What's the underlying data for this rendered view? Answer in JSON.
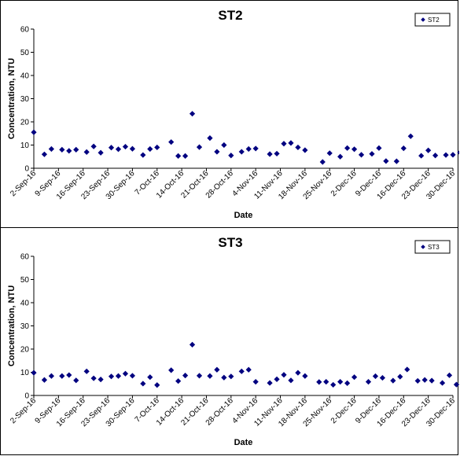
{
  "chart_data": [
    {
      "type": "scatter",
      "title": "ST2",
      "xlabel": "Date",
      "ylabel": "Concentration, NTU",
      "ylim": [
        0,
        60
      ],
      "yticks": [
        0,
        10,
        20,
        30,
        40,
        50,
        60
      ],
      "xlim": [
        "2-Sep-16",
        "30-Dec-16"
      ],
      "xtick_labels": [
        "2-Sep-16",
        "9-Sep-16",
        "16-Sep-16",
        "23-Sep-16",
        "30-Sep-16",
        "7-Oct-16",
        "14-Oct-16",
        "21-Oct-16",
        "28-Oct-16",
        "4-Nov-16",
        "11-Nov-16",
        "18-Nov-16",
        "25-Nov-16",
        "2-Dec-16",
        "9-Dec-16",
        "16-Dec-16",
        "23-Dec-16",
        "30-Dec-16"
      ],
      "legend_position": "top-right",
      "marker": "diamond",
      "color": "#000080",
      "series": [
        {
          "name": "ST2",
          "points": [
            {
              "x": "2-Sep-16",
              "y": 15.5
            },
            {
              "x": "5-Sep-16",
              "y": 6
            },
            {
              "x": "7-Sep-16",
              "y": 8.3
            },
            {
              "x": "10-Sep-16",
              "y": 8
            },
            {
              "x": "12-Sep-16",
              "y": 7.5
            },
            {
              "x": "14-Sep-16",
              "y": 8
            },
            {
              "x": "17-Sep-16",
              "y": 7
            },
            {
              "x": "19-Sep-16",
              "y": 9.4
            },
            {
              "x": "21-Sep-16",
              "y": 6.7
            },
            {
              "x": "24-Sep-16",
              "y": 8.9
            },
            {
              "x": "26-Sep-16",
              "y": 8.2
            },
            {
              "x": "28-Sep-16",
              "y": 9.3
            },
            {
              "x": "30-Sep-16",
              "y": 8.4
            },
            {
              "x": "3-Oct-16",
              "y": 5.7
            },
            {
              "x": "5-Oct-16",
              "y": 8.3
            },
            {
              "x": "7-Oct-16",
              "y": 9
            },
            {
              "x": "11-Oct-16",
              "y": 11.3
            },
            {
              "x": "13-Oct-16",
              "y": 5.3
            },
            {
              "x": "15-Oct-16",
              "y": 5.3
            },
            {
              "x": "17-Oct-16",
              "y": 23.5
            },
            {
              "x": "19-Oct-16",
              "y": 9.1
            },
            {
              "x": "22-Oct-16",
              "y": 13
            },
            {
              "x": "24-Oct-16",
              "y": 7.1
            },
            {
              "x": "26-Oct-16",
              "y": 10
            },
            {
              "x": "28-Oct-16",
              "y": 5.5
            },
            {
              "x": "31-Oct-16",
              "y": 7.1
            },
            {
              "x": "2-Nov-16",
              "y": 8.3
            },
            {
              "x": "4-Nov-16",
              "y": 8.5
            },
            {
              "x": "8-Nov-16",
              "y": 6.1
            },
            {
              "x": "10-Nov-16",
              "y": 6.3
            },
            {
              "x": "12-Nov-16",
              "y": 10.6
            },
            {
              "x": "14-Nov-16",
              "y": 10.9
            },
            {
              "x": "16-Nov-16",
              "y": 9
            },
            {
              "x": "18-Nov-16",
              "y": 7.8
            },
            {
              "x": "23-Nov-16",
              "y": 2.7
            },
            {
              "x": "25-Nov-16",
              "y": 6.5
            },
            {
              "x": "28-Nov-16",
              "y": 5
            },
            {
              "x": "30-Nov-16",
              "y": 8.7
            },
            {
              "x": "2-Dec-16",
              "y": 8.2
            },
            {
              "x": "4-Dec-16",
              "y": 5.8
            },
            {
              "x": "7-Dec-16",
              "y": 6.2
            },
            {
              "x": "9-Dec-16",
              "y": 8.7
            },
            {
              "x": "11-Dec-16",
              "y": 3.1
            },
            {
              "x": "14-Dec-16",
              "y": 3
            },
            {
              "x": "16-Dec-16",
              "y": 8.6
            },
            {
              "x": "18-Dec-16",
              "y": 13.8
            },
            {
              "x": "21-Dec-16",
              "y": 5.4
            },
            {
              "x": "23-Dec-16",
              "y": 7.7
            },
            {
              "x": "25-Dec-16",
              "y": 5.5
            },
            {
              "x": "28-Dec-16",
              "y": 5.7
            },
            {
              "x": "30-Dec-16",
              "y": 5.8
            },
            {
              "x": "1-Jan-17",
              "y": 6.8
            }
          ]
        }
      ]
    },
    {
      "type": "scatter",
      "title": "ST3",
      "xlabel": "Date",
      "ylabel": "Concentration, NTU",
      "ylim": [
        0,
        60
      ],
      "yticks": [
        0,
        10,
        20,
        30,
        40,
        50,
        60
      ],
      "xlim": [
        "2-Sep-16",
        "30-Dec-16"
      ],
      "xtick_labels": [
        "2-Sep-16",
        "9-Sep-16",
        "16-Sep-16",
        "23-Sep-16",
        "30-Sep-16",
        "7-Oct-16",
        "14-Oct-16",
        "21-Oct-16",
        "28-Oct-16",
        "4-Nov-16",
        "11-Nov-16",
        "18-Nov-16",
        "25-Nov-16",
        "2-Dec-16",
        "9-Dec-16",
        "16-Dec-16",
        "23-Dec-16",
        "30-Dec-16"
      ],
      "legend_position": "top-right",
      "marker": "diamond",
      "color": "#000080",
      "series": [
        {
          "name": "ST3",
          "points": [
            {
              "x": "2-Sep-16",
              "y": 9.8
            },
            {
              "x": "5-Sep-16",
              "y": 6.7
            },
            {
              "x": "7-Sep-16",
              "y": 8.4
            },
            {
              "x": "10-Sep-16",
              "y": 8.4
            },
            {
              "x": "12-Sep-16",
              "y": 8.8
            },
            {
              "x": "14-Sep-16",
              "y": 6.5
            },
            {
              "x": "17-Sep-16",
              "y": 10.4
            },
            {
              "x": "19-Sep-16",
              "y": 7.4
            },
            {
              "x": "21-Sep-16",
              "y": 6.9
            },
            {
              "x": "24-Sep-16",
              "y": 8.2
            },
            {
              "x": "26-Sep-16",
              "y": 8.4
            },
            {
              "x": "28-Sep-16",
              "y": 9.4
            },
            {
              "x": "30-Sep-16",
              "y": 8.5
            },
            {
              "x": "3-Oct-16",
              "y": 5.1
            },
            {
              "x": "5-Oct-16",
              "y": 7.9
            },
            {
              "x": "7-Oct-16",
              "y": 4.5
            },
            {
              "x": "11-Oct-16",
              "y": 10.9
            },
            {
              "x": "13-Oct-16",
              "y": 6.2
            },
            {
              "x": "15-Oct-16",
              "y": 8.6
            },
            {
              "x": "17-Oct-16",
              "y": 21.9
            },
            {
              "x": "19-Oct-16",
              "y": 8.5
            },
            {
              "x": "22-Oct-16",
              "y": 8.4
            },
            {
              "x": "24-Oct-16",
              "y": 11.1
            },
            {
              "x": "26-Oct-16",
              "y": 7.7
            },
            {
              "x": "28-Oct-16",
              "y": 8.2
            },
            {
              "x": "31-Oct-16",
              "y": 10.4
            },
            {
              "x": "2-Nov-16",
              "y": 11.1
            },
            {
              "x": "4-Nov-16",
              "y": 5.9
            },
            {
              "x": "8-Nov-16",
              "y": 5.4
            },
            {
              "x": "10-Nov-16",
              "y": 7
            },
            {
              "x": "12-Nov-16",
              "y": 8.9
            },
            {
              "x": "14-Nov-16",
              "y": 6.5
            },
            {
              "x": "16-Nov-16",
              "y": 9.8
            },
            {
              "x": "18-Nov-16",
              "y": 8.4
            },
            {
              "x": "22-Nov-16",
              "y": 5.8
            },
            {
              "x": "24-Nov-16",
              "y": 5.9
            },
            {
              "x": "26-Nov-16",
              "y": 4.6
            },
            {
              "x": "28-Nov-16",
              "y": 5.9
            },
            {
              "x": "30-Nov-16",
              "y": 5.3
            },
            {
              "x": "2-Dec-16",
              "y": 7.9
            },
            {
              "x": "6-Dec-16",
              "y": 5.9
            },
            {
              "x": "8-Dec-16",
              "y": 8.3
            },
            {
              "x": "10-Dec-16",
              "y": 7.6
            },
            {
              "x": "13-Dec-16",
              "y": 6.4
            },
            {
              "x": "15-Dec-16",
              "y": 8.1
            },
            {
              "x": "17-Dec-16",
              "y": 11.2
            },
            {
              "x": "20-Dec-16",
              "y": 6.3
            },
            {
              "x": "22-Dec-16",
              "y": 6.7
            },
            {
              "x": "24-Dec-16",
              "y": 6.4
            },
            {
              "x": "27-Dec-16",
              "y": 5.4
            },
            {
              "x": "29-Dec-16",
              "y": 8.7
            },
            {
              "x": "31-Dec-16",
              "y": 4.7
            }
          ]
        }
      ]
    }
  ]
}
